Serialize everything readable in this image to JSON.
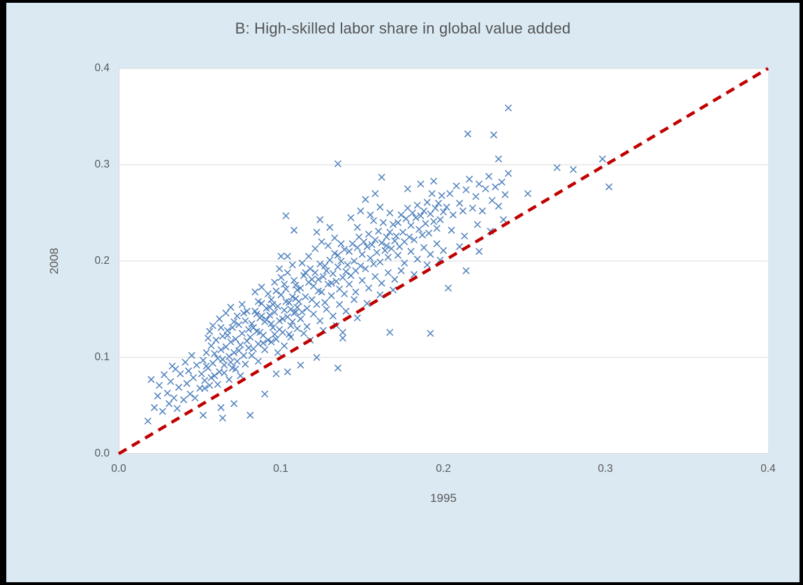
{
  "chart_data": {
    "type": "scatter",
    "title": "B: High-skilled labor share in global value added",
    "xlabel": "1995",
    "ylabel": "2008",
    "xlim": [
      0.0,
      0.4
    ],
    "ylim": [
      0.0,
      0.4
    ],
    "tick_values": [
      0.0,
      0.1,
      0.2,
      0.3,
      0.4
    ],
    "xtick_labels": [
      "0.0",
      "0.1",
      "0.2",
      "0.3",
      "0.4"
    ],
    "ytick_labels": [
      "0.0",
      "0.1",
      "0.2",
      "0.3",
      "0.4"
    ],
    "grid": "horizontal-only",
    "legend": "none",
    "colors": {
      "page_background": "#DAE9F2",
      "plot_background": "#FFFFFF",
      "frame_border": "#000000",
      "gridline": "#D9D9D9",
      "text": "#595959",
      "marker": "#4F81BD",
      "reference_line": "#C00000"
    },
    "marker": {
      "shape": "x",
      "size": 9,
      "color": "#4F81BD"
    },
    "reference_line": {
      "type": "45-degree diagonal",
      "from": [
        0.0,
        0.0
      ],
      "to": [
        0.4,
        0.4
      ],
      "style": "dashed",
      "width": 4.5,
      "color": "#C00000"
    },
    "points": [
      [
        0.018,
        0.034
      ],
      [
        0.02,
        0.077
      ],
      [
        0.022,
        0.048
      ],
      [
        0.024,
        0.06
      ],
      [
        0.025,
        0.071
      ],
      [
        0.027,
        0.044
      ],
      [
        0.028,
        0.082
      ],
      [
        0.03,
        0.063
      ],
      [
        0.031,
        0.052
      ],
      [
        0.032,
        0.075
      ],
      [
        0.033,
        0.091
      ],
      [
        0.034,
        0.058
      ],
      [
        0.035,
        0.088
      ],
      [
        0.036,
        0.047
      ],
      [
        0.037,
        0.069
      ],
      [
        0.038,
        0.083
      ],
      [
        0.04,
        0.056
      ],
      [
        0.041,
        0.095
      ],
      [
        0.042,
        0.073
      ],
      [
        0.043,
        0.086
      ],
      [
        0.044,
        0.062
      ],
      [
        0.045,
        0.102
      ],
      [
        0.046,
        0.079
      ],
      [
        0.047,
        0.058
      ],
      [
        0.048,
        0.092
      ],
      [
        0.05,
        0.068
      ],
      [
        0.052,
        0.04
      ],
      [
        0.063,
        0.048
      ],
      [
        0.064,
        0.037
      ],
      [
        0.071,
        0.052
      ],
      [
        0.081,
        0.04
      ],
      [
        0.09,
        0.062
      ],
      [
        0.097,
        0.083
      ],
      [
        0.104,
        0.085
      ],
      [
        0.112,
        0.092
      ],
      [
        0.122,
        0.1
      ],
      [
        0.138,
        0.12
      ],
      [
        0.147,
        0.141
      ],
      [
        0.167,
        0.126
      ],
      [
        0.192,
        0.125
      ],
      [
        0.203,
        0.172
      ],
      [
        0.214,
        0.19
      ],
      [
        0.051,
        0.083
      ],
      [
        0.052,
        0.097
      ],
      [
        0.053,
        0.076
      ],
      [
        0.054,
        0.105
      ],
      [
        0.055,
        0.089
      ],
      [
        0.056,
        0.071
      ],
      [
        0.057,
        0.112
      ],
      [
        0.058,
        0.094
      ],
      [
        0.059,
        0.081
      ],
      [
        0.06,
        0.118
      ],
      [
        0.061,
        0.099
      ],
      [
        0.062,
        0.085
      ],
      [
        0.063,
        0.108
      ],
      [
        0.064,
        0.122
      ],
      [
        0.065,
        0.092
      ],
      [
        0.066,
        0.111
      ],
      [
        0.067,
        0.128
      ],
      [
        0.068,
        0.101
      ],
      [
        0.069,
        0.116
      ],
      [
        0.07,
        0.089
      ],
      [
        0.07,
        0.131
      ],
      [
        0.071,
        0.105
      ],
      [
        0.072,
        0.119
      ],
      [
        0.073,
        0.096
      ],
      [
        0.074,
        0.134
      ],
      [
        0.075,
        0.113
      ],
      [
        0.076,
        0.125
      ],
      [
        0.077,
        0.102
      ],
      [
        0.078,
        0.138
      ],
      [
        0.079,
        0.117
      ],
      [
        0.08,
        0.129
      ],
      [
        0.055,
        0.12
      ],
      [
        0.058,
        0.133
      ],
      [
        0.062,
        0.14
      ],
      [
        0.066,
        0.146
      ],
      [
        0.069,
        0.152
      ],
      [
        0.073,
        0.143
      ],
      [
        0.076,
        0.155
      ],
      [
        0.079,
        0.148
      ],
      [
        0.053,
        0.068
      ],
      [
        0.057,
        0.079
      ],
      [
        0.061,
        0.072
      ],
      [
        0.065,
        0.084
      ],
      [
        0.068,
        0.077
      ],
      [
        0.072,
        0.088
      ],
      [
        0.075,
        0.081
      ],
      [
        0.078,
        0.093
      ],
      [
        0.054,
        0.091
      ],
      [
        0.059,
        0.104
      ],
      [
        0.064,
        0.098
      ],
      [
        0.067,
        0.123
      ],
      [
        0.071,
        0.137
      ],
      [
        0.074,
        0.107
      ],
      [
        0.077,
        0.146
      ],
      [
        0.08,
        0.11
      ],
      [
        0.056,
        0.127
      ],
      [
        0.063,
        0.131
      ],
      [
        0.069,
        0.095
      ],
      [
        0.081,
        0.121
      ],
      [
        0.082,
        0.135
      ],
      [
        0.083,
        0.109
      ],
      [
        0.084,
        0.148
      ],
      [
        0.085,
        0.127
      ],
      [
        0.086,
        0.114
      ],
      [
        0.087,
        0.141
      ],
      [
        0.088,
        0.156
      ],
      [
        0.089,
        0.123
      ],
      [
        0.09,
        0.137
      ],
      [
        0.091,
        0.151
      ],
      [
        0.092,
        0.118
      ],
      [
        0.093,
        0.144
      ],
      [
        0.094,
        0.16
      ],
      [
        0.095,
        0.131
      ],
      [
        0.096,
        0.147
      ],
      [
        0.097,
        0.119
      ],
      [
        0.098,
        0.153
      ],
      [
        0.099,
        0.138
      ],
      [
        0.1,
        0.165
      ],
      [
        0.101,
        0.126
      ],
      [
        0.102,
        0.149
      ],
      [
        0.103,
        0.171
      ],
      [
        0.104,
        0.142
      ],
      [
        0.105,
        0.157
      ],
      [
        0.106,
        0.133
      ],
      [
        0.107,
        0.163
      ],
      [
        0.108,
        0.146
      ],
      [
        0.109,
        0.175
      ],
      [
        0.11,
        0.152
      ],
      [
        0.082,
        0.102
      ],
      [
        0.086,
        0.096
      ],
      [
        0.09,
        0.108
      ],
      [
        0.094,
        0.116
      ],
      [
        0.098,
        0.105
      ],
      [
        0.102,
        0.112
      ],
      [
        0.106,
        0.121
      ],
      [
        0.11,
        0.13
      ],
      [
        0.084,
        0.168
      ],
      [
        0.088,
        0.173
      ],
      [
        0.092,
        0.166
      ],
      [
        0.096,
        0.178
      ],
      [
        0.1,
        0.183
      ],
      [
        0.104,
        0.188
      ],
      [
        0.108,
        0.18
      ],
      [
        0.083,
        0.131
      ],
      [
        0.087,
        0.126
      ],
      [
        0.091,
        0.139
      ],
      [
        0.095,
        0.155
      ],
      [
        0.099,
        0.129
      ],
      [
        0.103,
        0.158
      ],
      [
        0.107,
        0.137
      ],
      [
        0.109,
        0.161
      ],
      [
        0.085,
        0.145
      ],
      [
        0.089,
        0.115
      ],
      [
        0.093,
        0.152
      ],
      [
        0.097,
        0.169
      ],
      [
        0.101,
        0.14
      ],
      [
        0.105,
        0.124
      ],
      [
        0.109,
        0.147
      ],
      [
        0.086,
        0.158
      ],
      [
        0.094,
        0.135
      ],
      [
        0.102,
        0.176
      ],
      [
        0.106,
        0.15
      ],
      [
        0.11,
        0.17
      ],
      [
        0.088,
        0.143
      ],
      [
        0.096,
        0.124
      ],
      [
        0.104,
        0.205
      ],
      [
        0.099,
        0.192
      ],
      [
        0.107,
        0.196
      ],
      [
        0.103,
        0.247
      ],
      [
        0.108,
        0.232
      ],
      [
        0.1,
        0.205
      ],
      [
        0.111,
        0.158
      ],
      [
        0.112,
        0.172
      ],
      [
        0.113,
        0.147
      ],
      [
        0.114,
        0.185
      ],
      [
        0.115,
        0.163
      ],
      [
        0.116,
        0.151
      ],
      [
        0.117,
        0.178
      ],
      [
        0.118,
        0.192
      ],
      [
        0.119,
        0.16
      ],
      [
        0.12,
        0.174
      ],
      [
        0.121,
        0.188
      ],
      [
        0.122,
        0.155
      ],
      [
        0.123,
        0.181
      ],
      [
        0.124,
        0.197
      ],
      [
        0.125,
        0.168
      ],
      [
        0.126,
        0.184
      ],
      [
        0.127,
        0.157
      ],
      [
        0.128,
        0.19
      ],
      [
        0.129,
        0.176
      ],
      [
        0.13,
        0.201
      ],
      [
        0.131,
        0.164
      ],
      [
        0.132,
        0.187
      ],
      [
        0.133,
        0.208
      ],
      [
        0.134,
        0.179
      ],
      [
        0.135,
        0.194
      ],
      [
        0.136,
        0.171
      ],
      [
        0.137,
        0.2
      ],
      [
        0.138,
        0.183
      ],
      [
        0.139,
        0.212
      ],
      [
        0.14,
        0.189
      ],
      [
        0.112,
        0.14
      ],
      [
        0.116,
        0.132
      ],
      [
        0.12,
        0.145
      ],
      [
        0.124,
        0.138
      ],
      [
        0.128,
        0.15
      ],
      [
        0.132,
        0.143
      ],
      [
        0.136,
        0.155
      ],
      [
        0.14,
        0.148
      ],
      [
        0.113,
        0.198
      ],
      [
        0.117,
        0.205
      ],
      [
        0.121,
        0.213
      ],
      [
        0.125,
        0.22
      ],
      [
        0.129,
        0.216
      ],
      [
        0.133,
        0.224
      ],
      [
        0.137,
        0.218
      ],
      [
        0.114,
        0.125
      ],
      [
        0.118,
        0.118
      ],
      [
        0.126,
        0.128
      ],
      [
        0.134,
        0.133
      ],
      [
        0.138,
        0.126
      ],
      [
        0.115,
        0.188
      ],
      [
        0.119,
        0.181
      ],
      [
        0.123,
        0.169
      ],
      [
        0.127,
        0.195
      ],
      [
        0.131,
        0.177
      ],
      [
        0.135,
        0.206
      ],
      [
        0.139,
        0.166
      ],
      [
        0.135,
        0.301
      ],
      [
        0.124,
        0.243
      ],
      [
        0.13,
        0.235
      ],
      [
        0.122,
        0.23
      ],
      [
        0.141,
        0.196
      ],
      [
        0.142,
        0.21
      ],
      [
        0.143,
        0.185
      ],
      [
        0.144,
        0.218
      ],
      [
        0.145,
        0.2
      ],
      [
        0.146,
        0.19
      ],
      [
        0.147,
        0.214
      ],
      [
        0.148,
        0.225
      ],
      [
        0.149,
        0.195
      ],
      [
        0.15,
        0.207
      ],
      [
        0.151,
        0.22
      ],
      [
        0.152,
        0.192
      ],
      [
        0.153,
        0.215
      ],
      [
        0.154,
        0.228
      ],
      [
        0.155,
        0.203
      ],
      [
        0.156,
        0.217
      ],
      [
        0.157,
        0.197
      ],
      [
        0.158,
        0.222
      ],
      [
        0.159,
        0.209
      ],
      [
        0.16,
        0.231
      ],
      [
        0.161,
        0.199
      ],
      [
        0.162,
        0.219
      ],
      [
        0.163,
        0.24
      ],
      [
        0.164,
        0.211
      ],
      [
        0.165,
        0.225
      ],
      [
        0.166,
        0.204
      ],
      [
        0.167,
        0.23
      ],
      [
        0.168,
        0.213
      ],
      [
        0.169,
        0.238
      ],
      [
        0.17,
        0.221
      ],
      [
        0.142,
        0.176
      ],
      [
        0.146,
        0.168
      ],
      [
        0.15,
        0.18
      ],
      [
        0.154,
        0.172
      ],
      [
        0.158,
        0.184
      ],
      [
        0.162,
        0.177
      ],
      [
        0.166,
        0.188
      ],
      [
        0.17,
        0.181
      ],
      [
        0.143,
        0.245
      ],
      [
        0.149,
        0.252
      ],
      [
        0.155,
        0.248
      ],
      [
        0.161,
        0.256
      ],
      [
        0.167,
        0.25
      ],
      [
        0.145,
        0.16
      ],
      [
        0.153,
        0.156
      ],
      [
        0.161,
        0.165
      ],
      [
        0.169,
        0.17
      ],
      [
        0.147,
        0.235
      ],
      [
        0.157,
        0.242
      ],
      [
        0.165,
        0.216
      ],
      [
        0.162,
        0.287
      ],
      [
        0.158,
        0.27
      ],
      [
        0.152,
        0.264
      ],
      [
        0.171,
        0.226
      ],
      [
        0.172,
        0.24
      ],
      [
        0.173,
        0.215
      ],
      [
        0.174,
        0.248
      ],
      [
        0.175,
        0.23
      ],
      [
        0.176,
        0.22
      ],
      [
        0.177,
        0.244
      ],
      [
        0.178,
        0.255
      ],
      [
        0.179,
        0.225
      ],
      [
        0.18,
        0.237
      ],
      [
        0.181,
        0.25
      ],
      [
        0.182,
        0.222
      ],
      [
        0.183,
        0.245
      ],
      [
        0.184,
        0.258
      ],
      [
        0.185,
        0.233
      ],
      [
        0.186,
        0.247
      ],
      [
        0.187,
        0.227
      ],
      [
        0.188,
        0.252
      ],
      [
        0.189,
        0.239
      ],
      [
        0.19,
        0.261
      ],
      [
        0.191,
        0.229
      ],
      [
        0.192,
        0.249
      ],
      [
        0.193,
        0.27
      ],
      [
        0.194,
        0.241
      ],
      [
        0.195,
        0.255
      ],
      [
        0.196,
        0.234
      ],
      [
        0.197,
        0.26
      ],
      [
        0.198,
        0.243
      ],
      [
        0.199,
        0.268
      ],
      [
        0.2,
        0.251
      ],
      [
        0.172,
        0.206
      ],
      [
        0.176,
        0.198
      ],
      [
        0.18,
        0.21
      ],
      [
        0.184,
        0.202
      ],
      [
        0.188,
        0.214
      ],
      [
        0.192,
        0.207
      ],
      [
        0.196,
        0.218
      ],
      [
        0.2,
        0.211
      ],
      [
        0.174,
        0.19
      ],
      [
        0.182,
        0.186
      ],
      [
        0.19,
        0.196
      ],
      [
        0.198,
        0.201
      ],
      [
        0.178,
        0.275
      ],
      [
        0.186,
        0.28
      ],
      [
        0.194,
        0.283
      ],
      [
        0.202,
        0.256
      ],
      [
        0.204,
        0.27
      ],
      [
        0.206,
        0.248
      ],
      [
        0.208,
        0.278
      ],
      [
        0.21,
        0.26
      ],
      [
        0.212,
        0.252
      ],
      [
        0.214,
        0.274
      ],
      [
        0.216,
        0.285
      ],
      [
        0.218,
        0.255
      ],
      [
        0.22,
        0.267
      ],
      [
        0.222,
        0.28
      ],
      [
        0.224,
        0.252
      ],
      [
        0.226,
        0.275
      ],
      [
        0.228,
        0.288
      ],
      [
        0.23,
        0.263
      ],
      [
        0.232,
        0.277
      ],
      [
        0.234,
        0.257
      ],
      [
        0.236,
        0.282
      ],
      [
        0.238,
        0.269
      ],
      [
        0.24,
        0.291
      ],
      [
        0.205,
        0.232
      ],
      [
        0.213,
        0.226
      ],
      [
        0.221,
        0.238
      ],
      [
        0.229,
        0.231
      ],
      [
        0.237,
        0.243
      ],
      [
        0.21,
        0.215
      ],
      [
        0.222,
        0.21
      ],
      [
        0.24,
        0.359
      ],
      [
        0.231,
        0.331
      ],
      [
        0.215,
        0.332
      ],
      [
        0.234,
        0.306
      ],
      [
        0.298,
        0.306
      ],
      [
        0.302,
        0.277
      ],
      [
        0.27,
        0.297
      ],
      [
        0.28,
        0.295
      ],
      [
        0.252,
        0.27
      ],
      [
        0.135,
        0.089
      ]
    ]
  }
}
